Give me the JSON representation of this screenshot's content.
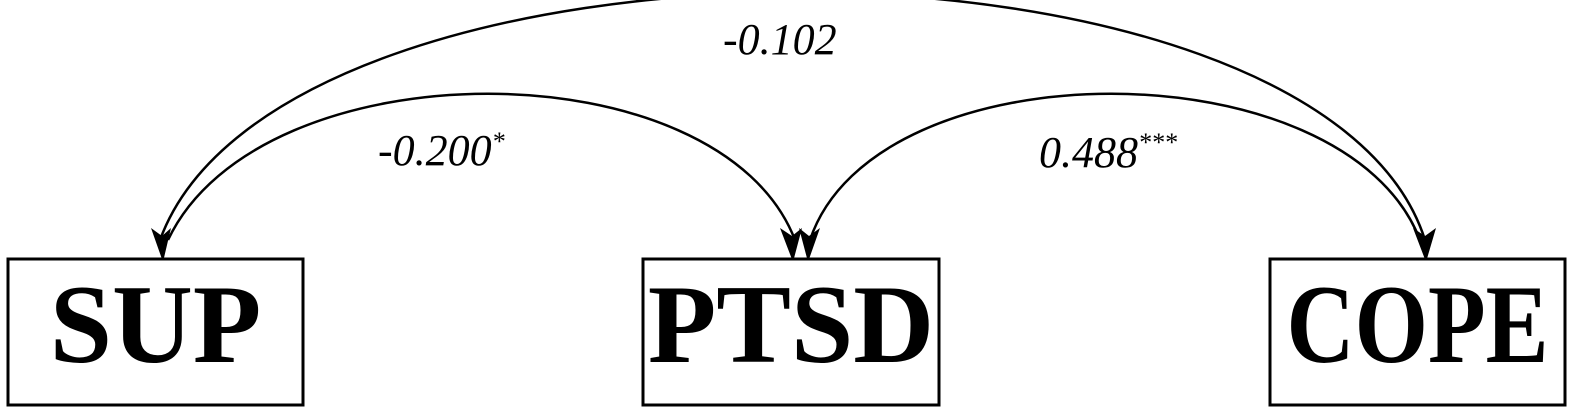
{
  "nodes": {
    "sup": {
      "label": "SUP"
    },
    "ptsd": {
      "label": "PTSD"
    },
    "cope": {
      "label": "COPE"
    }
  },
  "edges": {
    "sup_cope": {
      "coefficient": "-0.102",
      "significance": ""
    },
    "sup_ptsd": {
      "coefficient": "-0.200",
      "significance": "*"
    },
    "ptsd_cope": {
      "coefficient": "0.488",
      "significance": "***"
    }
  }
}
